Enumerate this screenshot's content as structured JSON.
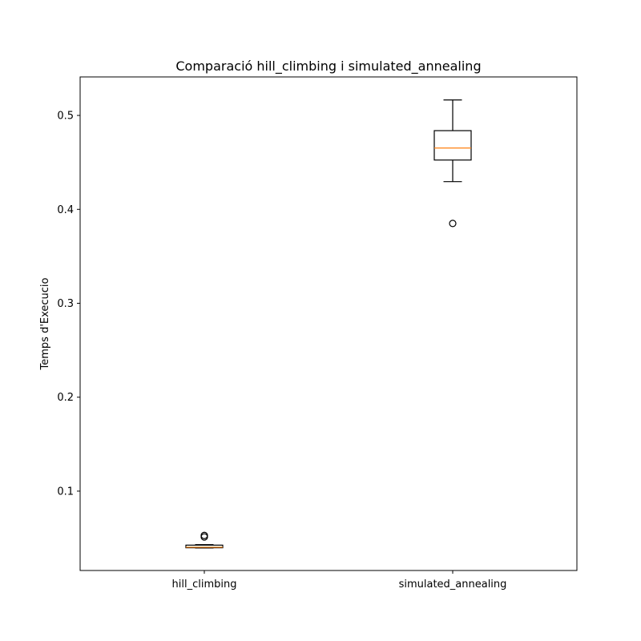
{
  "chart_data": {
    "type": "boxplot",
    "title": "Comparació hill_climbing i simulated_annealing",
    "xlabel": "",
    "ylabel": "Temps d'Execucio",
    "ylim": [
      0.0155,
      0.541
    ],
    "yticks": [
      0.1,
      0.2,
      0.3,
      0.4,
      0.5
    ],
    "grid": false,
    "categories": [
      "hill_climbing",
      "simulated_annealing"
    ],
    "boxes": [
      {
        "label": "hill_climbing",
        "whisker_low": 0.0395,
        "q1": 0.0397,
        "median": 0.0403,
        "q3": 0.0425,
        "whisker_high": 0.043,
        "outliers": [
          0.0512,
          0.0528
        ]
      },
      {
        "label": "simulated_annealing",
        "whisker_low": 0.4295,
        "q1": 0.4525,
        "median": 0.4653,
        "q3": 0.4838,
        "whisker_high": 0.5165,
        "outliers": [
          0.385
        ]
      }
    ],
    "colors": {
      "box": "#000000",
      "median": "#ff7f0e",
      "outlier": "#000000"
    }
  }
}
